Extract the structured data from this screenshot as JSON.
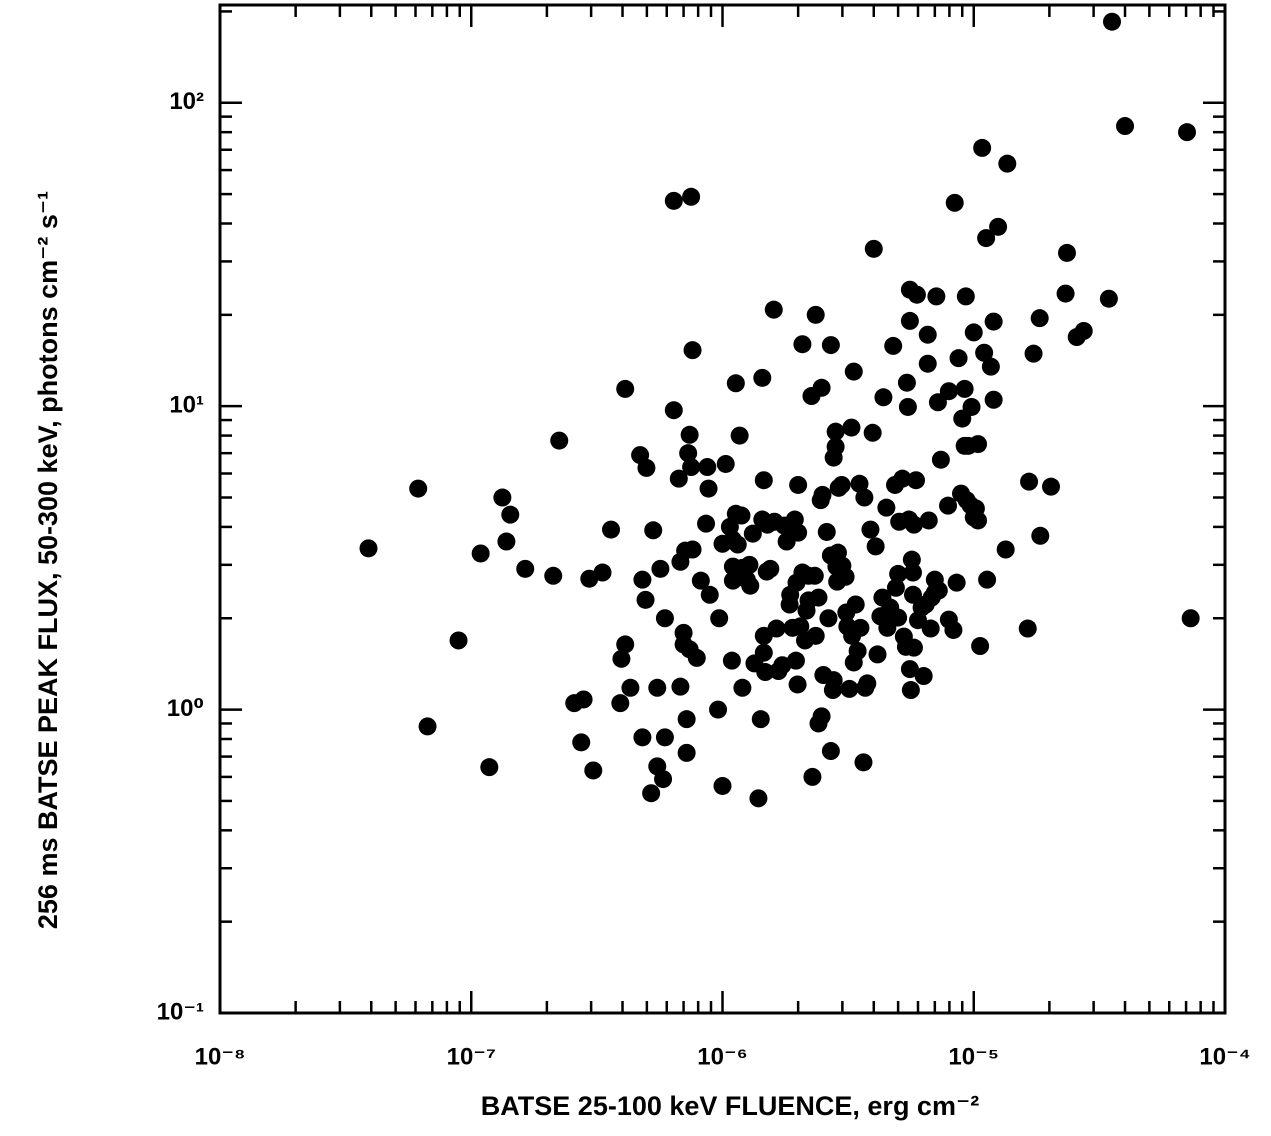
{
  "chart_data": {
    "type": "scatter",
    "xlabel": "BATSE 25-100 keV FLUENCE, erg cm⁻²",
    "ylabel": "256 ms BATSE PEAK FLUX, 50-300 keV, photons cm⁻² s⁻¹",
    "xscale": "log",
    "yscale": "log",
    "color": "#000000",
    "xlim": [
      1e-08,
      0.0001
    ],
    "ylim": [
      0.1,
      210
    ],
    "xticks": [
      {
        "value": 1e-08,
        "label": "10⁻⁸"
      },
      {
        "value": 1e-07,
        "label": "10⁻⁷"
      },
      {
        "value": 1e-06,
        "label": "10⁻⁶"
      },
      {
        "value": 1e-05,
        "label": "10⁻⁵"
      },
      {
        "value": 0.0001,
        "label": "10⁻⁴"
      }
    ],
    "yticks": [
      {
        "value": 0.1,
        "label": "10⁻¹"
      },
      {
        "value": 1,
        "label": "10⁰"
      },
      {
        "value": 10,
        "label": "10¹"
      },
      {
        "value": 100,
        "label": "10²"
      }
    ],
    "xminorticks": [
      2e-08,
      3e-08,
      4e-08,
      5e-08,
      6e-08,
      7e-08,
      8e-08,
      9e-08,
      2e-07,
      3e-07,
      4e-07,
      5e-07,
      6e-07,
      7e-07,
      8e-07,
      9e-07,
      2e-06,
      3e-06,
      4e-06,
      5e-06,
      6e-06,
      7e-06,
      8e-06,
      9e-06,
      2e-05,
      3e-05,
      4e-05,
      5e-05,
      6e-05,
      7e-05,
      8e-05,
      9e-05
    ],
    "yminorticks": [
      0.2,
      0.3,
      0.4,
      0.5,
      0.6,
      0.7,
      0.8,
      0.9,
      2,
      3,
      4,
      5,
      6,
      7,
      8,
      9,
      20,
      30,
      40,
      50,
      60,
      70,
      80,
      90,
      200
    ],
    "x": [
      3.9e-08,
      6.15e-08,
      6.7e-08,
      8.9e-08,
      1.18e-07,
      1.09e-07,
      1.33e-07,
      1.38e-07,
      1.43e-07,
      1.64e-07,
      2.12e-07,
      2.24e-07,
      2.57e-07,
      2.8e-07,
      2.74e-07,
      3.06e-07,
      2.95e-07,
      3.33e-07,
      3.6e-07,
      4.1e-07,
      3.92e-07,
      3.96e-07,
      4.1e-07,
      4.3e-07,
      4.7e-07,
      4.98e-07,
      4.8e-07,
      4.8e-07,
      4.94e-07,
      5.2e-07,
      5.3e-07,
      5.5e-07,
      5.5e-07,
      5.8e-07,
      5.66e-07,
      5.9e-07,
      5.9e-07,
      6.4e-07,
      6.4e-07,
      7.5e-07,
      6.7e-07,
      6.8e-07,
      7e-07,
      6.8e-07,
      7e-07,
      7.1e-07,
      7.2e-07,
      7.2e-07,
      7.3e-07,
      7.4e-07,
      7.5e-07,
      7.6e-07,
      7.6e-07,
      7.4e-07,
      7.9e-07,
      8.2e-07,
      8.7e-07,
      8.8e-07,
      8.9e-07,
      8.6e-07,
      9.7e-07,
      9.6e-07,
      1e-06,
      1.03e-06,
      1e-06,
      1.07e-06,
      1.09e-06,
      1.1e-06,
      1.1e-06,
      1.13e-06,
      1.13e-06,
      1.1e-06,
      1.15e-06,
      1.17e-06,
      1.19e-06,
      1.2e-06,
      1.2e-06,
      1.25e-06,
      1.28e-06,
      1.29e-06,
      1.32e-06,
      1.34e-06,
      1.39e-06,
      1.42e-06,
      1.44e-06,
      1.44e-06,
      1.46e-06,
      1.46e-06,
      1.46e-06,
      1.48e-06,
      1.51e-06,
      1.5e-06,
      1.55e-06,
      1.6e-06,
      1.61e-06,
      1.64e-06,
      1.67e-06,
      1.73e-06,
      1.76e-06,
      1.8e-06,
      1.85e-06,
      1.86e-06,
      1.9e-06,
      1.94e-06,
      1.96e-06,
      1.99e-06,
      1.97e-06,
      2e-06,
      2e-06,
      2.04e-06,
      2.08e-06,
      2.08e-06,
      2.16e-06,
      2.13e-06,
      2.2e-06,
      2.2e-06,
      2.26e-06,
      2.28e-06,
      2.35e-06,
      2.33e-06,
      2.35e-06,
      2.41e-06,
      2.41e-06,
      2.46e-06,
      2.48e-06,
      2.48e-06,
      2.5e-06,
      2.52e-06,
      2.6e-06,
      2.64e-06,
      2.7e-06,
      2.7e-06,
      2.7e-06,
      2.77e-06,
      2.75e-06,
      2.77e-06,
      2.82e-06,
      2.82e-06,
      2.84e-06,
      2.86e-06,
      2.88e-06,
      2.9e-06,
      2.98e-06,
      3e-06,
      3.09e-06,
      3.11e-06,
      3.14e-06,
      3.2e-06,
      3.26e-06,
      3.28e-06,
      3.33e-06,
      3.33e-06,
      3.39e-06,
      3.45e-06,
      3.51e-06,
      3.54e-06,
      3.64e-06,
      3.7e-06,
      3.67e-06,
      3.77e-06,
      3.88e-06,
      4e-06,
      3.96e-06,
      4.07e-06,
      4.14e-06,
      4.25e-06,
      4.33e-06,
      4.37e-06,
      4.49e-06,
      4.53e-06,
      4.61e-06,
      4.65e-06,
      4.78e-06,
      4.86e-06,
      4.9e-06,
      5e-06,
      5e-06,
      5.05e-06,
      5.2e-06,
      5.27e-06,
      5.37e-06,
      5.42e-06,
      5.47e-06,
      5.52e-06,
      5.57e-06,
      5.57e-06,
      5.57e-06,
      5.62e-06,
      5.67e-06,
      5.73e-06,
      5.73e-06,
      5.78e-06,
      5.89e-06,
      5.94e-06,
      5.78e-06,
      6e-06,
      6.2e-06,
      6.32e-06,
      6.44e-06,
      6.56e-06,
      6.56e-06,
      6.62e-06,
      6.74e-06,
      6.8e-06,
      7e-06,
      7.1e-06,
      7e-06,
      7.2e-06,
      7.26e-06,
      7.4e-06,
      7.9e-06,
      7.96e-06,
      7.96e-06,
      8.3e-06,
      8.4e-06,
      8.55e-06,
      8.7e-06,
      8.9e-06,
      9e-06,
      9.2e-06,
      9.2e-06,
      9.3e-06,
      9.37e-06,
      9.5e-06,
      9.7e-06,
      9.8e-06,
      1e-05,
      1e-05,
      1.02e-05,
      1.04e-05,
      1.04e-05,
      1.06e-05,
      1.08e-05,
      1.1e-05,
      1.12e-05,
      1.13e-05,
      1.17e-05,
      1.2e-05,
      1.2e-05,
      1.25e-05,
      1.34e-05,
      1.36e-05,
      1.64e-05,
      1.66e-05,
      1.73e-05,
      1.83e-05,
      1.84e-05,
      2.03e-05,
      2.32e-05,
      2.35e-05,
      2.57e-05,
      2.74e-05,
      3.45e-05,
      3.55e-05,
      4e-05,
      7.06e-05,
      7.3e-05
    ],
    "values": [
      3.4,
      5.35,
      0.88,
      1.69,
      0.646,
      3.27,
      5.0,
      3.58,
      4.39,
      2.91,
      2.76,
      7.7,
      1.05,
      1.08,
      0.78,
      0.63,
      2.7,
      2.83,
      3.92,
      11.4,
      1.05,
      1.47,
      1.64,
      1.18,
      6.9,
      6.26,
      0.81,
      2.68,
      2.3,
      0.53,
      3.9,
      0.65,
      1.18,
      0.59,
      2.91,
      2.0,
      0.81,
      9.7,
      47.5,
      49,
      5.77,
      3.07,
      1.79,
      1.19,
      1.64,
      3.34,
      0.93,
      0.72,
      7.0,
      8.05,
      6.3,
      15.3,
      3.37,
      1.58,
      1.48,
      2.66,
      6.3,
      5.35,
      2.39,
      4.1,
      2.0,
      1.0,
      0.56,
      6.45,
      3.52,
      4.0,
      1.45,
      3.63,
      2.66,
      4.42,
      11.9,
      2.96,
      3.5,
      8.0,
      4.36,
      1.18,
      2.93,
      2.68,
      3.0,
      2.56,
      3.8,
      1.42,
      0.51,
      0.93,
      12.4,
      4.23,
      5.7,
      1.54,
      1.75,
      1.33,
      4.07,
      2.85,
      2.91,
      20.8,
      4.16,
      1.85,
      1.34,
      1.4,
      4.04,
      3.58,
      2.22,
      2.39,
      1.86,
      4.23,
      1.45,
      1.21,
      2.62,
      5.5,
      3.83,
      1.88,
      16.0,
      2.83,
      2.12,
      1.69,
      2.29,
      2.76,
      10.8,
      0.6,
      20.0,
      2.76,
      1.75,
      0.9,
      2.34,
      4.9,
      11.5,
      0.95,
      5.1,
      1.3,
      3.85,
      2.0,
      0.73,
      3.22,
      15.9,
      1.25,
      1.16,
      6.77,
      8.24,
      7.35,
      2.96,
      2.64,
      3.29,
      5.38,
      5.5,
      2.98,
      2.74,
      2.09,
      1.88,
      1.17,
      8.5,
      1.75,
      13.0,
      1.43,
      2.22,
      1.56,
      5.55,
      1.86,
      0.67,
      1.18,
      5.0,
      1.22,
      3.92,
      33.0,
      8.17,
      3.45,
      1.52,
      2.03,
      2.34,
      10.7,
      4.63,
      1.86,
      2.04,
      2.17,
      15.8,
      5.5,
      2.52,
      2.8,
      2.01,
      4.16,
      5.77,
      1.74,
      1.61,
      11.95,
      9.94,
      4.23,
      19.1,
      24.2,
      1.36,
      1.16,
      3.12,
      2.83,
      2.39,
      4.07,
      5.7,
      23.3,
      1.6,
      1.97,
      2.17,
      1.29,
      2.22,
      17.2,
      13.8,
      4.2,
      1.85,
      2.34,
      2.43,
      23.0,
      2.68,
      10.3,
      2.47,
      6.66,
      4.7,
      11.2,
      1.98,
      1.83,
      46.8,
      2.62,
      14.4,
      5.15,
      9.1,
      11.4,
      7.4,
      23.0,
      4.9,
      7.4,
      4.72,
      9.94,
      17.5,
      4.3,
      4.6,
      4.2,
      7.5,
      1.62,
      71,
      15.0,
      35.8,
      2.68,
      13.5,
      19.0,
      10.5,
      39.0,
      3.37,
      63,
      1.85,
      5.64,
      14.9,
      19.5,
      3.74,
      5.43,
      23.5,
      32.0,
      16.9,
      17.7,
      22.6,
      185,
      83.8,
      80,
      2.0
    ]
  }
}
